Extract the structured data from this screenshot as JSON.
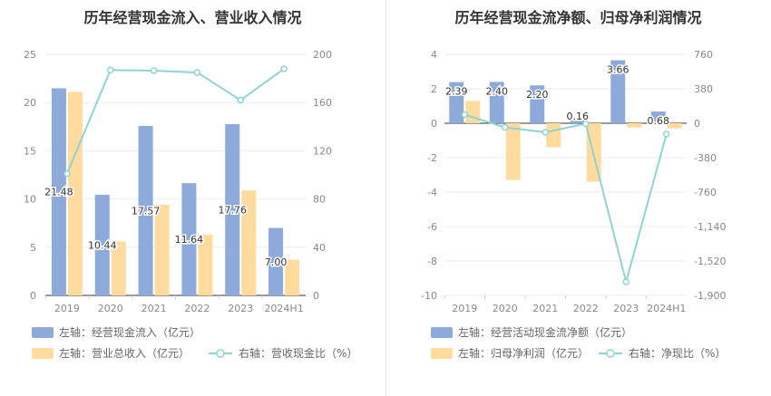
{
  "chart_data": [
    {
      "type": "bar",
      "title": "历年经营现金流入、营业收入情况",
      "categories": [
        "2019",
        "2020",
        "2021",
        "2022",
        "2023",
        "2024H1"
      ],
      "left_axis": {
        "ylim": [
          0,
          25
        ],
        "ticks": [
          "0",
          "5",
          "10",
          "15",
          "20",
          "25"
        ]
      },
      "right_axis": {
        "ylim": [
          0,
          200
        ],
        "ticks": [
          "0",
          "40",
          "80",
          "120",
          "160",
          "200"
        ]
      },
      "series": [
        {
          "name": "左轴：经营现金流入（亿元）",
          "axis": "left",
          "kind": "bar",
          "color": "#8eaadb",
          "values": [
            21.48,
            10.44,
            17.57,
            11.64,
            17.76,
            7.0
          ],
          "labels": [
            "21.48",
            "10.44",
            "17.57",
            "11.64",
            "17.76",
            "7.00"
          ]
        },
        {
          "name": "左轴：营业总收入（亿元）",
          "axis": "left",
          "kind": "bar",
          "color": "#ffdb9e",
          "values": [
            21.1,
            5.6,
            9.4,
            6.3,
            10.9,
            3.7
          ]
        },
        {
          "name": "右轴：营收现金比（%）",
          "axis": "right",
          "kind": "line",
          "color": "#8fd3d3",
          "values": [
            101,
            187,
            186.5,
            185,
            162,
            188
          ]
        }
      ]
    },
    {
      "type": "bar",
      "title": "历年经营现金流净额、归母净利润情况",
      "categories": [
        "2019",
        "2020",
        "2021",
        "2022",
        "2023",
        "2024H1"
      ],
      "left_axis": {
        "ylim": [
          -10,
          4
        ],
        "ticks": [
          "-10",
          "-8",
          "-6",
          "-4",
          "-2",
          "0",
          "2",
          "4"
        ]
      },
      "right_axis": {
        "ylim": [
          -1900,
          760
        ],
        "ticks": [
          "-1,900",
          "-1,520",
          "-1,140",
          "-760",
          "-380",
          "0",
          "380",
          "760"
        ]
      },
      "series": [
        {
          "name": "左轴：经营活动现金流净额（亿元）",
          "axis": "left",
          "kind": "bar",
          "color": "#8eaadb",
          "values": [
            2.39,
            2.4,
            2.2,
            0.16,
            3.66,
            0.68
          ],
          "labels": [
            "2.39",
            "2.40",
            "2.20",
            "0.16",
            "3.66",
            "0.68"
          ]
        },
        {
          "name": "左轴：归母净利润（亿元）",
          "axis": "left",
          "kind": "bar",
          "color": "#ffdb9e",
          "values": [
            1.3,
            -3.3,
            -1.4,
            -3.4,
            -0.25,
            -0.3
          ]
        },
        {
          "name": "右轴：净现比（%）",
          "axis": "right",
          "kind": "line",
          "color": "#8fd3d3",
          "values": [
            95,
            -45,
            -100,
            -5,
            -1750,
            -120
          ]
        }
      ]
    }
  ]
}
